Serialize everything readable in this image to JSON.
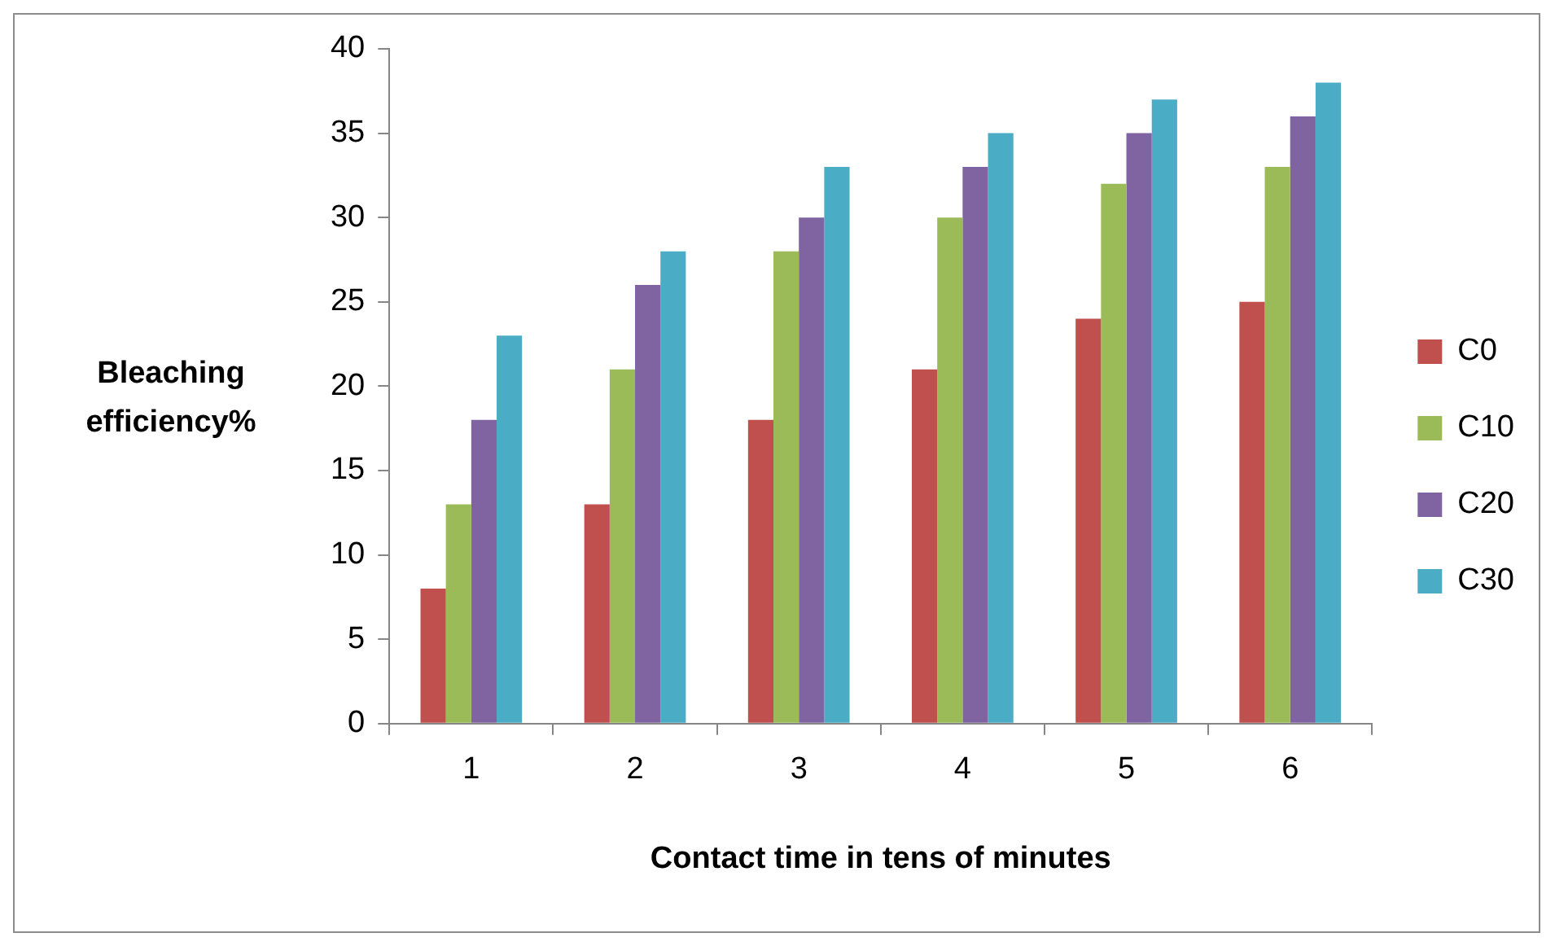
{
  "chart_data": {
    "type": "bar",
    "xlabel": "Contact time in tens of minutes",
    "ylabel": "Bleaching efficiency%",
    "categories": [
      "1",
      "2",
      "3",
      "4",
      "5",
      "6"
    ],
    "series": [
      {
        "name": "C0",
        "color": "#c0504d",
        "values": [
          8,
          13,
          18,
          21,
          24,
          25
        ]
      },
      {
        "name": "C10",
        "color": "#9bbb59",
        "values": [
          13,
          21,
          28,
          30,
          32,
          33
        ]
      },
      {
        "name": "C20",
        "color": "#8064a2",
        "values": [
          18,
          26,
          30,
          33,
          35,
          36
        ]
      },
      {
        "name": "C30",
        "color": "#4bacc6",
        "values": [
          23,
          28,
          33,
          35,
          37,
          38
        ]
      }
    ],
    "ylim": [
      0,
      40
    ],
    "yticks": [
      0,
      5,
      10,
      15,
      20,
      25,
      30,
      35,
      40
    ],
    "legend": "right"
  }
}
